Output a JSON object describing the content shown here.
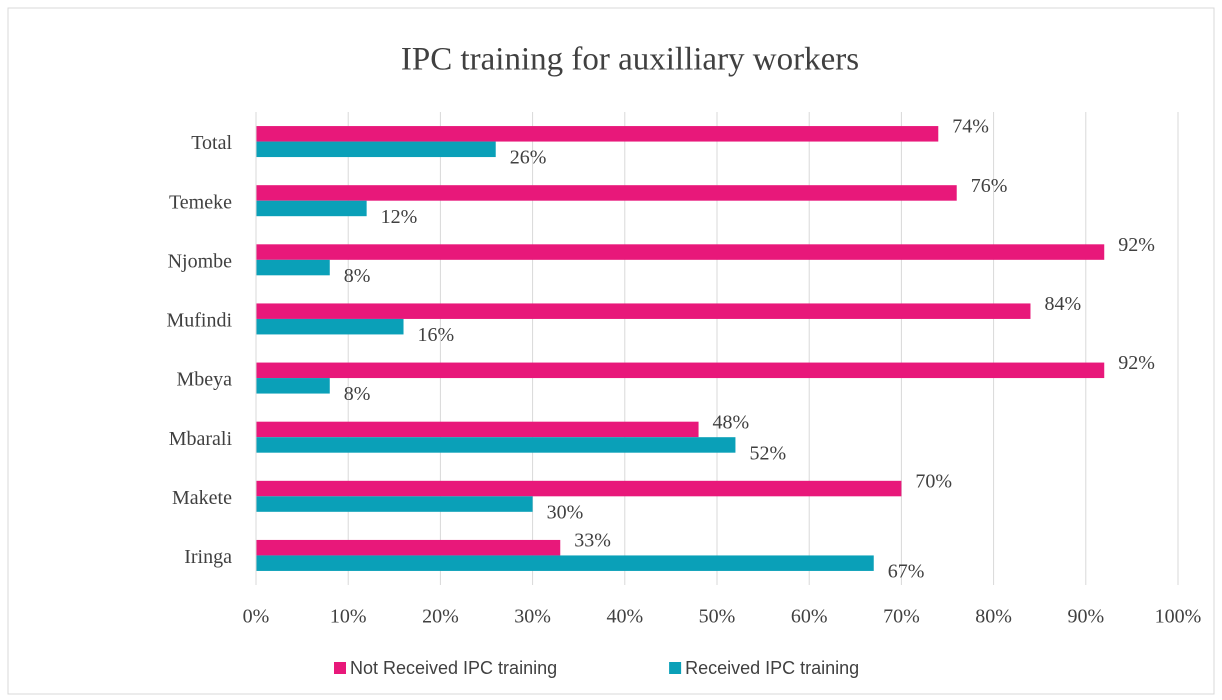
{
  "chart_data": {
    "type": "hbar",
    "title": "IPC training for auxilliary workers",
    "categories": [
      "Total",
      "Temeke",
      "Njombe",
      "Mufindi",
      "Mbeya",
      "Mbarali",
      "Makete",
      "Iringa"
    ],
    "series": [
      {
        "name": "Not Received IPC training",
        "color": "#e8187a",
        "values": [
          74,
          76,
          92,
          84,
          92,
          48,
          70,
          33
        ],
        "value_labels": [
          "74%",
          "76%",
          "92%",
          "84%",
          "92%",
          "48%",
          "70%",
          "33%"
        ]
      },
      {
        "name": "Received IPC training",
        "color": "#0aa0b8",
        "values": [
          26,
          12,
          8,
          16,
          8,
          52,
          30,
          67
        ],
        "value_labels": [
          "26%",
          "12%",
          "8%",
          "16%",
          "8%",
          "52%",
          "30%",
          "67%"
        ]
      }
    ],
    "xlim": [
      0,
      100
    ],
    "xticks": [
      {
        "value": 0,
        "label": "0%"
      },
      {
        "value": 10,
        "label": "10%"
      },
      {
        "value": 20,
        "label": "20%"
      },
      {
        "value": 30,
        "label": "30%"
      },
      {
        "value": 40,
        "label": "40%"
      },
      {
        "value": 50,
        "label": "50%"
      },
      {
        "value": 60,
        "label": "60%"
      },
      {
        "value": 70,
        "label": "70%"
      },
      {
        "value": 80,
        "label": "80%"
      },
      {
        "value": 90,
        "label": "90%"
      },
      {
        "value": 100,
        "label": "100%"
      }
    ],
    "grid": true,
    "legend": "bottom"
  }
}
